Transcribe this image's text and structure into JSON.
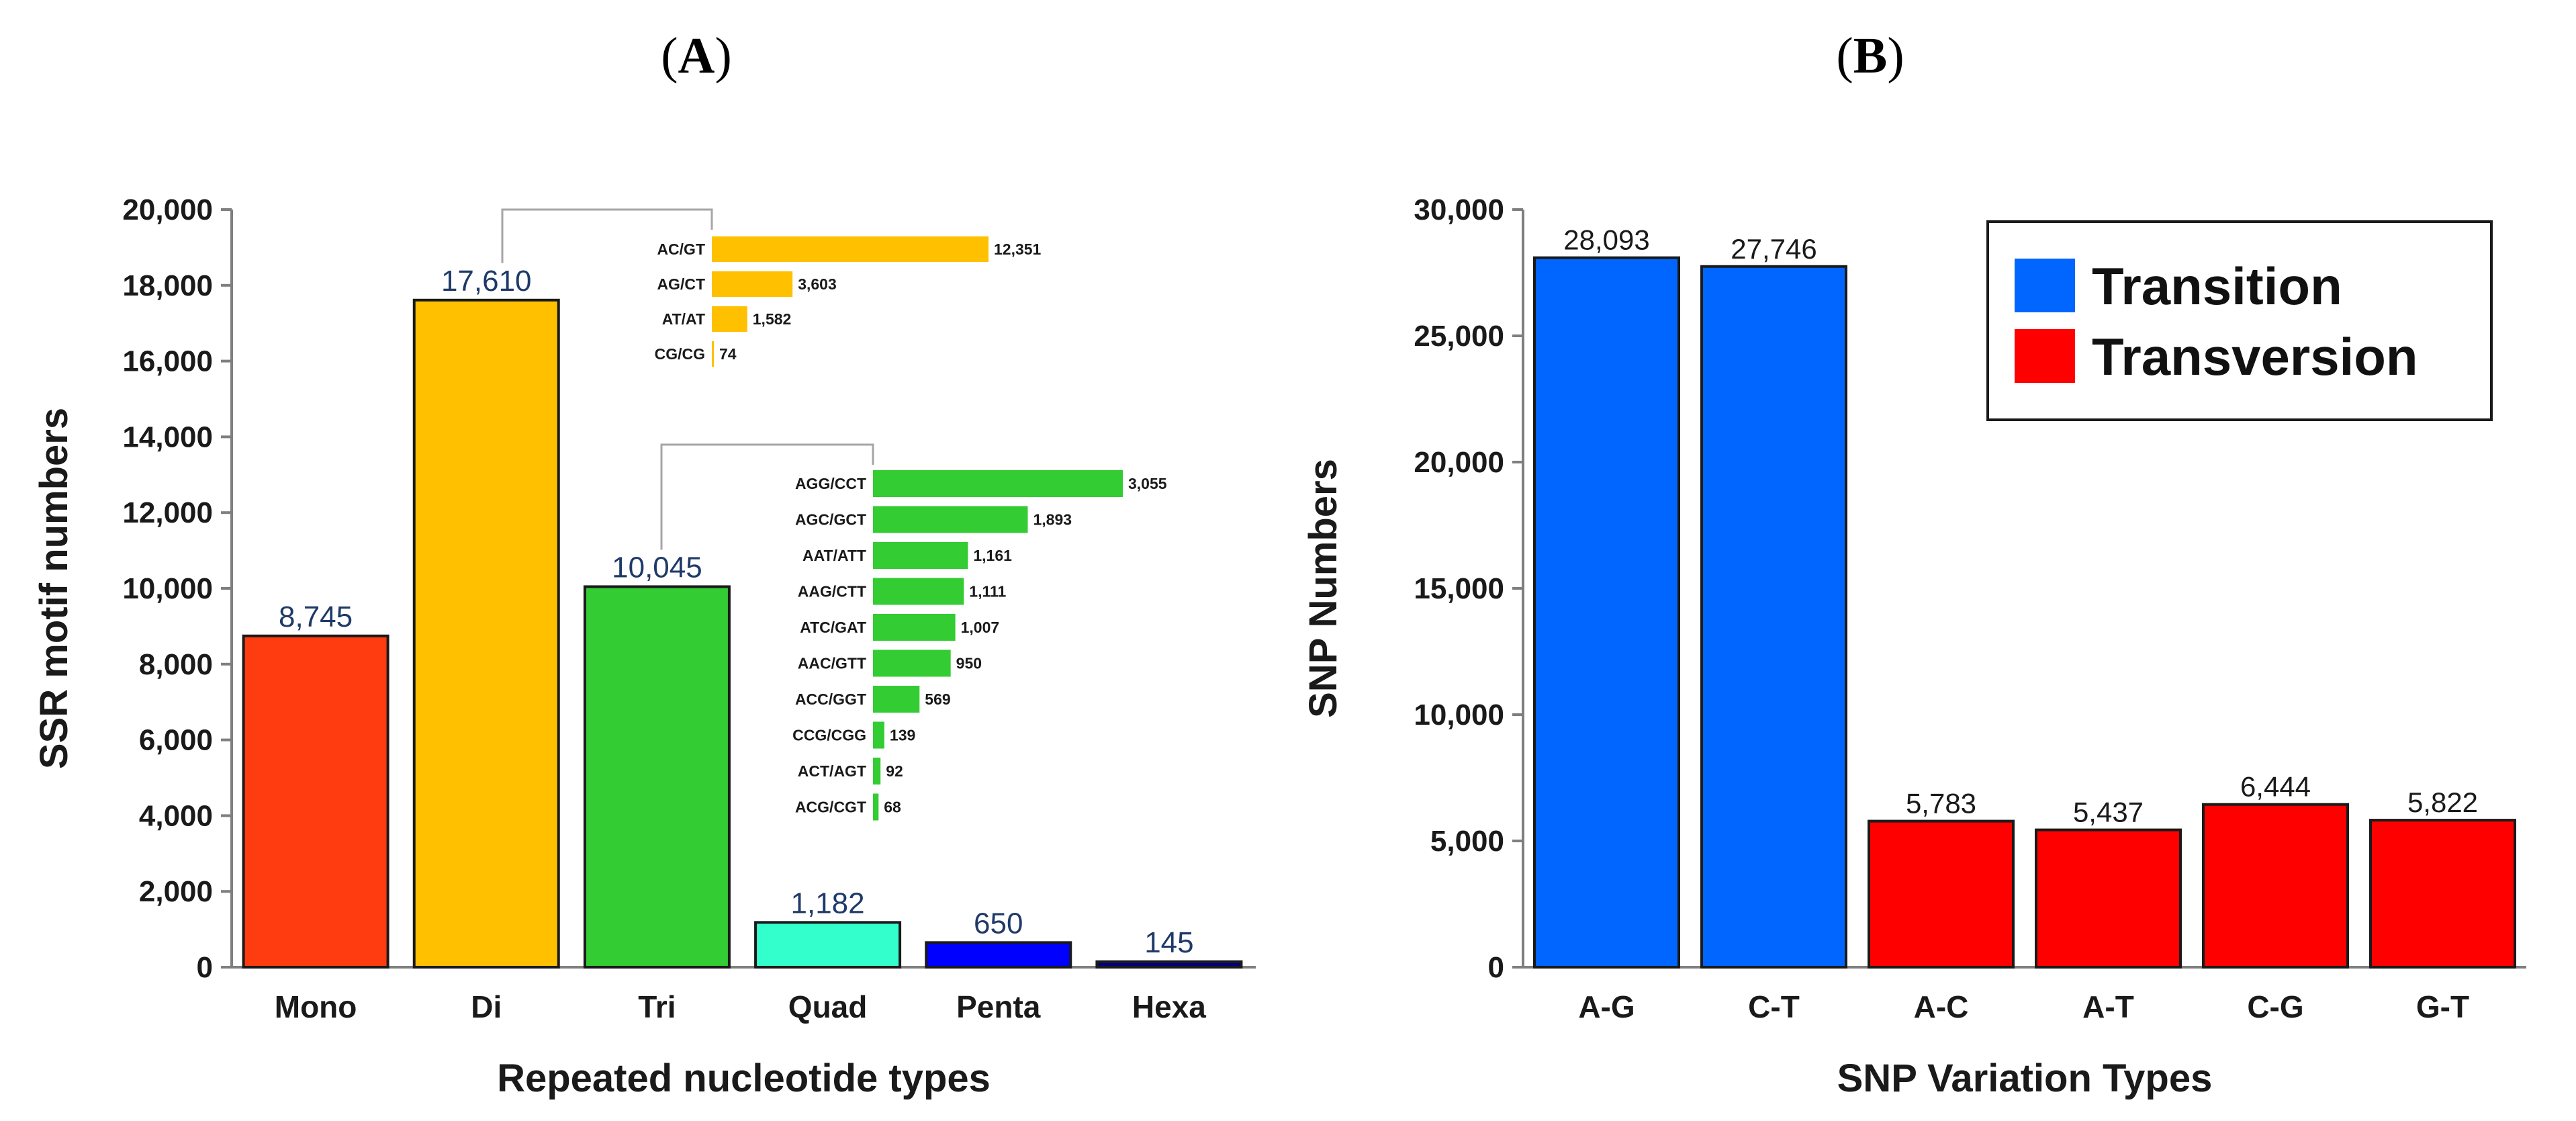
{
  "chart_data": [
    {
      "type": "bar",
      "panel": "A",
      "xlabel": "Repeated nucleotide types",
      "ylabel": "SSR motif numbers",
      "ylim": [
        0,
        20000
      ],
      "yticks": [
        0,
        2000,
        4000,
        6000,
        8000,
        10000,
        12000,
        14000,
        16000,
        18000,
        20000
      ],
      "ytick_labels": [
        "0",
        "2,000",
        "4,000",
        "6,000",
        "8,000",
        "10,000",
        "12,000",
        "14,000",
        "16,000",
        "18,000",
        "20,000"
      ],
      "categories": [
        "Mono",
        "Di",
        "Tri",
        "Quad",
        "Penta",
        "Hexa"
      ],
      "values": [
        8745,
        17610,
        10045,
        1182,
        650,
        145
      ],
      "value_labels": [
        "8,745",
        "17,610",
        "10,045",
        "1,182",
        "650",
        "145"
      ],
      "colors": [
        "#ff3b10",
        "#ffc000",
        "#33cc33",
        "#33ffcc",
        "#0000ff",
        "#000080"
      ],
      "grid": false,
      "insets": [
        {
          "type": "bar",
          "orientation": "horizontal",
          "parent_category": "Di",
          "color": "#ffc000",
          "categories": [
            "AC/GT",
            "AG/CT",
            "AT/AT",
            "CG/CG"
          ],
          "values": [
            12351,
            3603,
            1582,
            74
          ],
          "value_labels": [
            "12,351",
            "3,603",
            "1,582",
            "74"
          ]
        },
        {
          "type": "bar",
          "orientation": "horizontal",
          "parent_category": "Tri",
          "color": "#33cc33",
          "categories": [
            "AGG/CCT",
            "AGC/GCT",
            "AAT/ATT",
            "AAG/CTT",
            "ATC/GAT",
            "AAC/GTT",
            "ACC/GGT",
            "CCG/CGG",
            "ACT/AGT",
            "ACG/CGT"
          ],
          "values": [
            3055,
            1893,
            1161,
            1111,
            1007,
            950,
            569,
            139,
            92,
            68
          ],
          "value_labels": [
            "3,055",
            "1,893",
            "1,161",
            "1,111",
            "1,007",
            "950",
            "569",
            "139",
            "92",
            "68"
          ]
        }
      ]
    },
    {
      "type": "bar",
      "panel": "B",
      "xlabel": "SNP Variation Types",
      "ylabel": "SNP Numbers",
      "ylim": [
        0,
        30000
      ],
      "yticks": [
        0,
        5000,
        10000,
        15000,
        20000,
        25000,
        30000
      ],
      "ytick_labels": [
        "0",
        "5,000",
        "10,000",
        "15,000",
        "20,000",
        "25,000",
        "30,000"
      ],
      "categories": [
        "A-G",
        "C-T",
        "A-C",
        "A-T",
        "C-G",
        "G-T"
      ],
      "values": [
        28093,
        27746,
        5783,
        5437,
        6444,
        5822
      ],
      "value_labels": [
        "28,093",
        "27,746",
        "5,783",
        "5,437",
        "6,444",
        "5,822"
      ],
      "groups": [
        "Transition",
        "Transition",
        "Transversion",
        "Transversion",
        "Transversion",
        "Transversion"
      ],
      "legend": [
        {
          "name": "Transition",
          "color": "#0066ff"
        },
        {
          "name": "Transversion",
          "color": "#ff0000"
        }
      ],
      "legend_position": "top-right",
      "grid": false
    }
  ],
  "panels": {
    "a": {
      "open": "(",
      "letter": "A",
      "close": ")"
    },
    "b": {
      "open": "(",
      "letter": "B",
      "close": ")"
    }
  }
}
